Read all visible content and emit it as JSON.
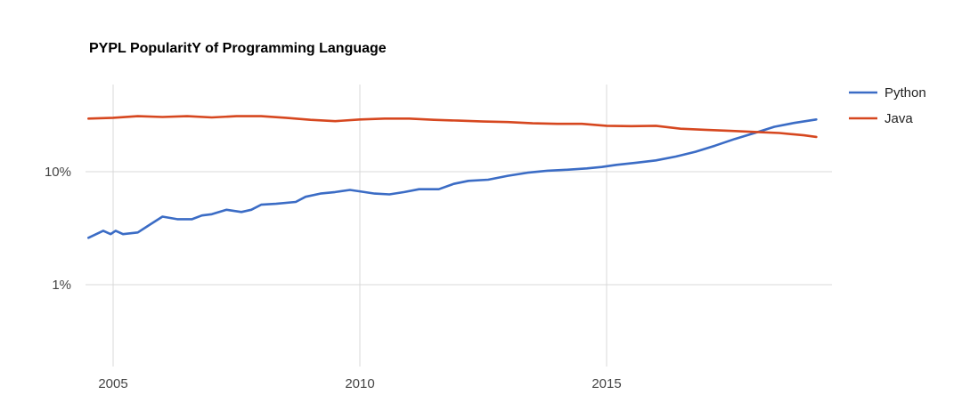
{
  "chart_data": {
    "type": "line",
    "title": "PYPL PopularitY of Programming Language",
    "xlabel": "",
    "ylabel": "",
    "y_scale": "log",
    "xlim": [
      2004.5,
      2019.25
    ],
    "ylim": [
      0.16,
      55
    ],
    "x_ticks": [
      {
        "value": 2005,
        "label": "2005"
      },
      {
        "value": 2010,
        "label": "2010"
      },
      {
        "value": 2015,
        "label": "2015"
      }
    ],
    "y_ticks": [
      {
        "value": 1,
        "label": "1%"
      },
      {
        "value": 10,
        "label": "10%"
      }
    ],
    "grid": true,
    "legend_position": "right",
    "series": [
      {
        "name": "Python",
        "color": "#3b6cc5",
        "x": [
          2004.5,
          2004.8,
          2004.95,
          2005.05,
          2005.2,
          2005.5,
          2005.7,
          2006.0,
          2006.3,
          2006.6,
          2006.8,
          2007.0,
          2007.3,
          2007.6,
          2007.8,
          2008.0,
          2008.3,
          2008.7,
          2008.9,
          2009.2,
          2009.5,
          2009.8,
          2010.0,
          2010.3,
          2010.6,
          2010.9,
          2011.2,
          2011.6,
          2011.9,
          2012.2,
          2012.6,
          2013.0,
          2013.4,
          2013.8,
          2014.2,
          2014.6,
          2014.9,
          2015.2,
          2015.6,
          2016.0,
          2016.4,
          2016.8,
          2017.2,
          2017.6,
          2018.0,
          2018.4,
          2018.8,
          2019.25
        ],
        "values": [
          2.6,
          3.0,
          2.8,
          3.0,
          2.8,
          2.9,
          3.3,
          4.0,
          3.8,
          3.8,
          4.1,
          4.2,
          4.6,
          4.4,
          4.6,
          5.1,
          5.2,
          5.4,
          6.0,
          6.4,
          6.6,
          6.9,
          6.7,
          6.4,
          6.3,
          6.6,
          7.0,
          7.0,
          7.8,
          8.3,
          8.5,
          9.2,
          9.8,
          10.2,
          10.4,
          10.7,
          11.0,
          11.5,
          12.0,
          12.6,
          13.6,
          15.0,
          17.0,
          19.5,
          22.0,
          25.0,
          27.0,
          29.0
        ]
      },
      {
        "name": "Java",
        "color": "#d6471f",
        "x": [
          2004.5,
          2005.0,
          2005.5,
          2006.0,
          2006.5,
          2007.0,
          2007.5,
          2008.0,
          2008.5,
          2009.0,
          2009.5,
          2010.0,
          2010.5,
          2011.0,
          2011.5,
          2012.0,
          2012.5,
          2013.0,
          2013.5,
          2014.0,
          2014.5,
          2015.0,
          2015.5,
          2016.0,
          2016.5,
          2017.0,
          2017.5,
          2018.0,
          2018.5,
          2019.0,
          2019.25
        ],
        "values": [
          29.5,
          30.0,
          31.0,
          30.5,
          31.0,
          30.2,
          31.0,
          31.0,
          30.0,
          28.8,
          28.0,
          29.0,
          29.5,
          29.5,
          28.8,
          28.3,
          27.8,
          27.5,
          26.8,
          26.5,
          26.5,
          25.5,
          25.3,
          25.5,
          24.0,
          23.5,
          23.0,
          22.5,
          22.0,
          21.0,
          20.3
        ]
      }
    ]
  }
}
